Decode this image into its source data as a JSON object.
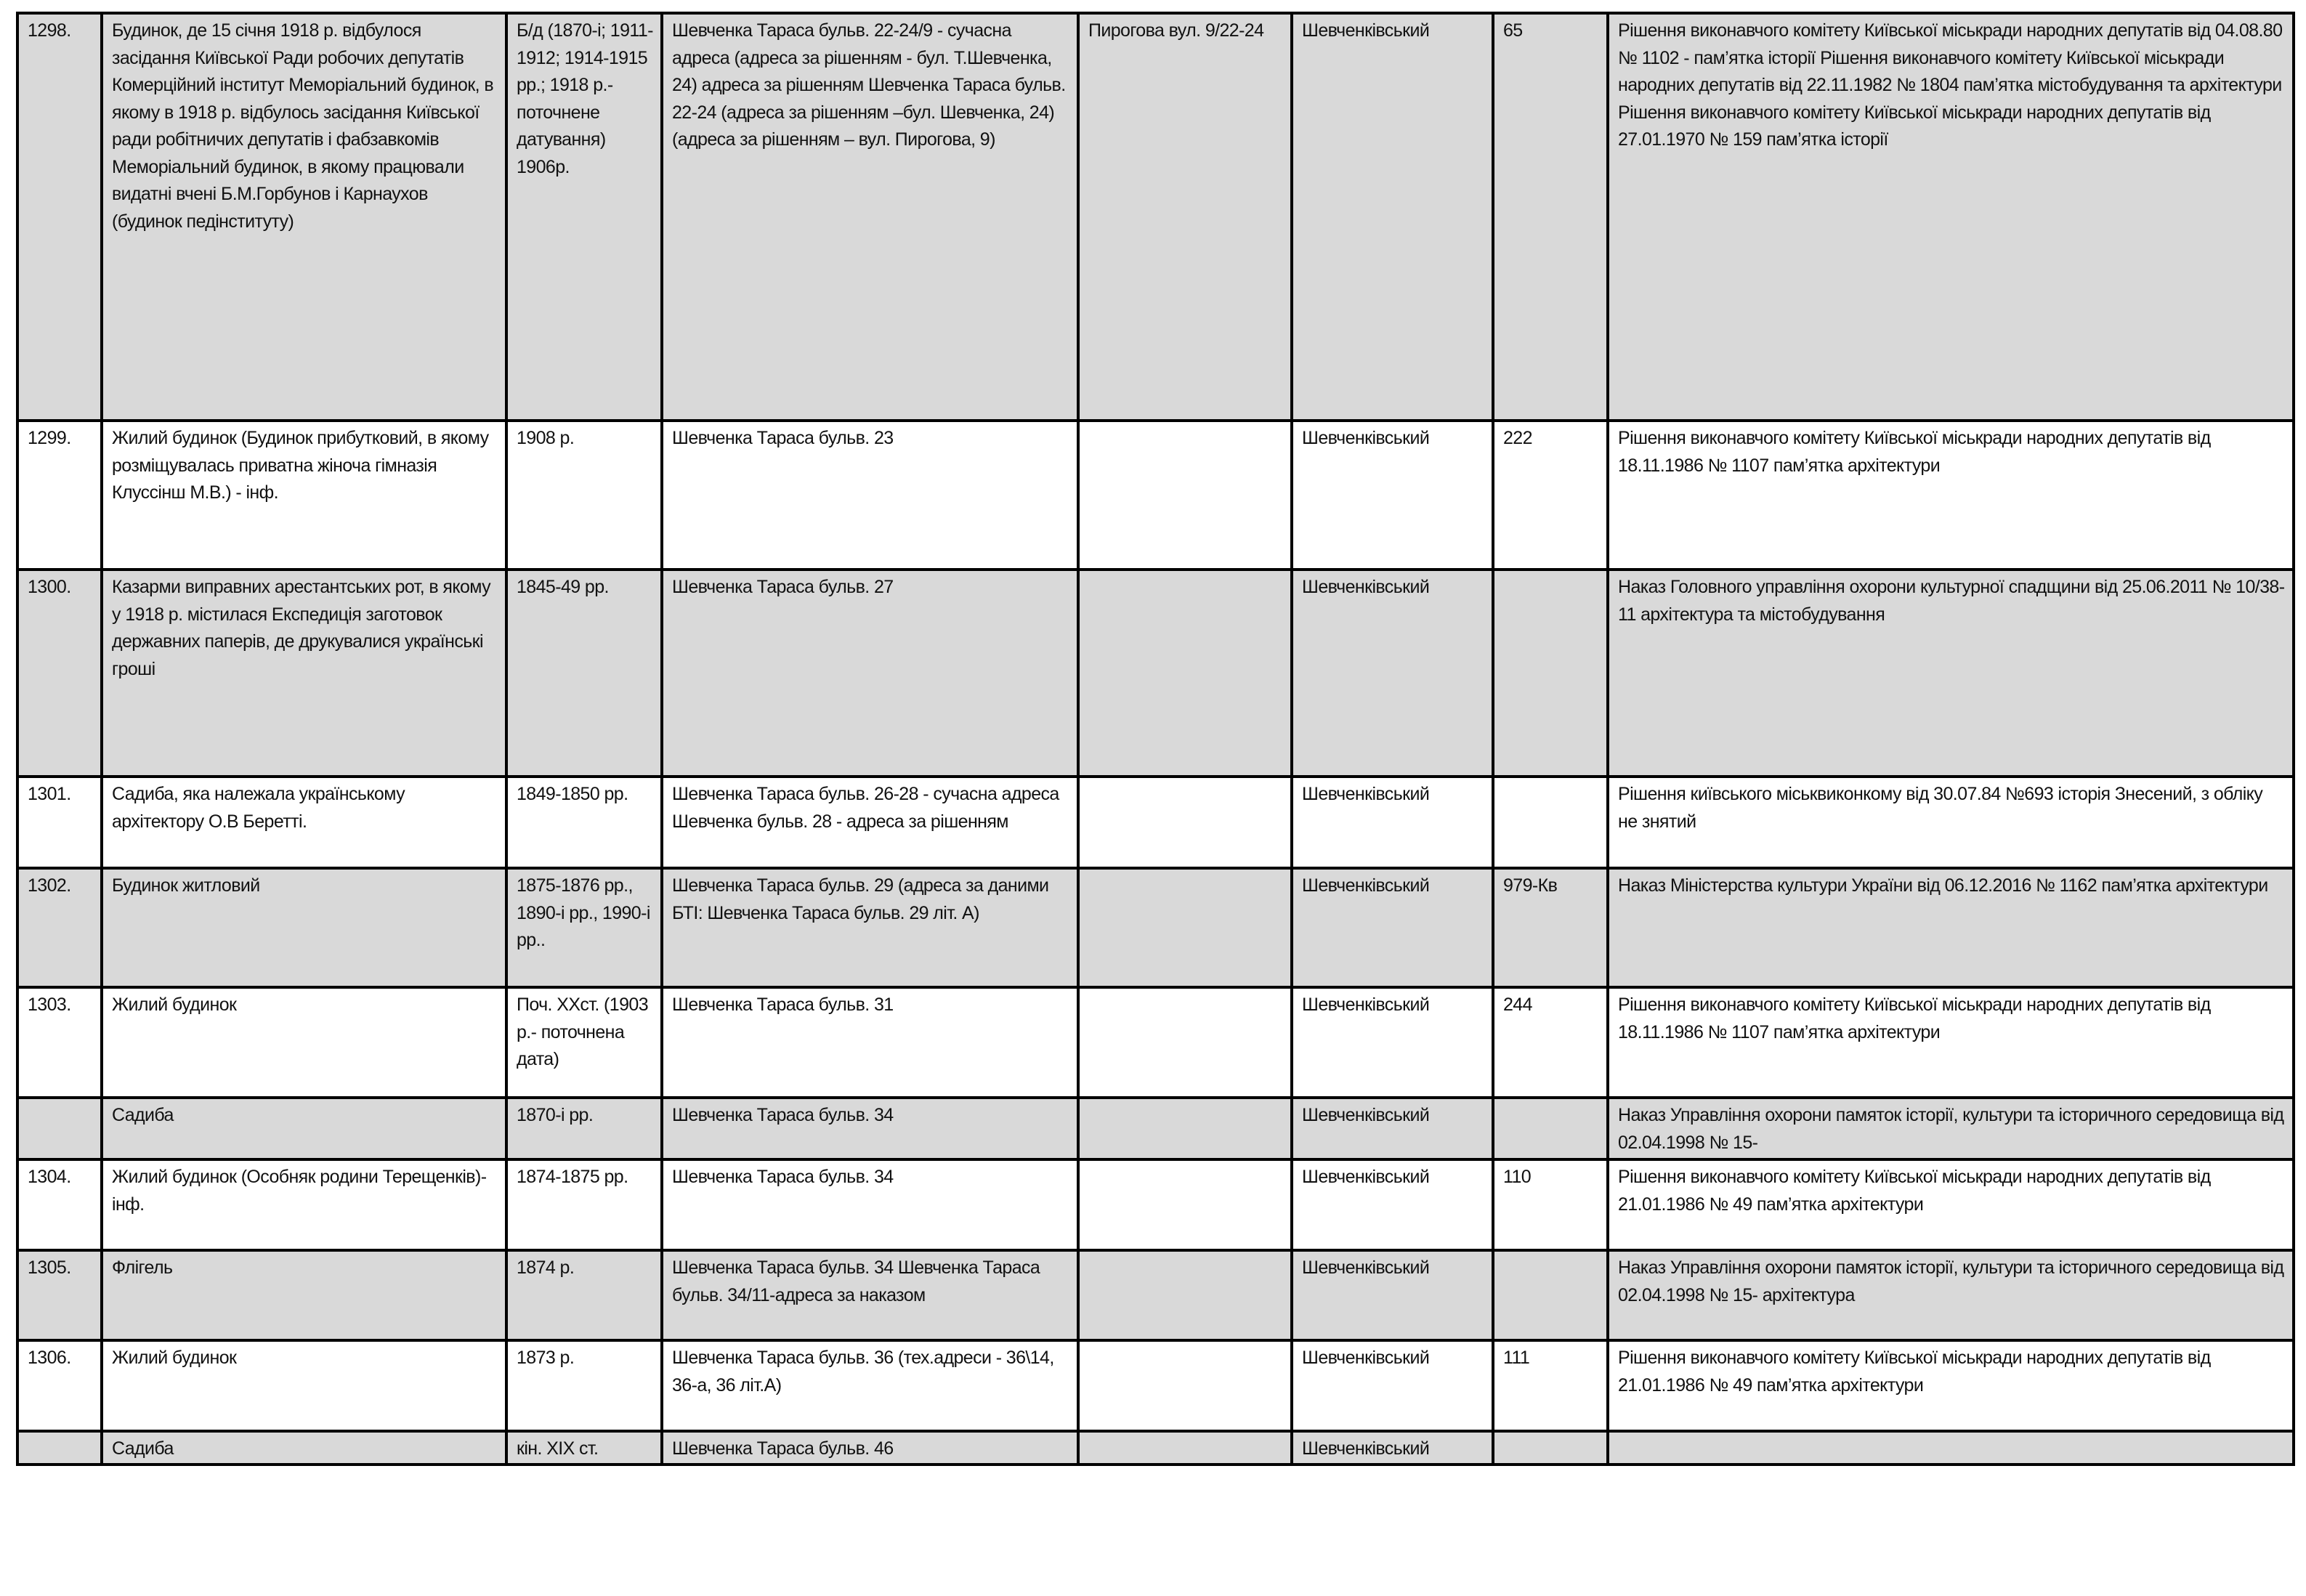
{
  "colors": {
    "shaded_row": "#d9d9d9",
    "plain_row": "#ffffff",
    "border": "#000000"
  },
  "rows": [
    {
      "shaded": true,
      "no": "1298.",
      "name": "Будинок, де 15 січня 1918 р. відбулося засідання Київської Ради робочих депутатів Комерційний інститут Меморіальний будинок, в якому в 1918 р. відбулось засідання Київської ради робітничих депутатів і фабзавкомів Меморіальний будинок, в якому працювали видатні вчені Б.М.Горбунов і Карнаухов (будинок педінституту)",
      "date": "Б/д (1870-і; 1911-1912; 1914-1915 рр.; 1918 р.- поточнене датування) 1906р.",
      "address": "Шевченка Тараса бульв. 22-24/9 - сучасна адреса (адреса за рішенням - бул. Т.Шевченка, 24) адреса за рішенням Шевченка Тараса бульв. 22-24 (адреса за рішенням –бул. Шевченка, 24) (адреса за рішенням – вул. Пирогова, 9)",
      "alt_address": "Пирогова вул. 9/22-24",
      "district": "Шевченківський",
      "reg_no": "65",
      "decision": "Рішення виконавчого комітету Київської міськради народних депутатів від 04.08.80 № 1102 - пам’ятка історії Рішення виконавчого комітету Київської міськради народних депутатів від 22.11.1982 № 1804 пам’ятка містобудування та архітектури Рішення виконавчого комітету Київської міськради народних депутатів від 27.01.1970 № 159 пам’ятка історії"
    },
    {
      "shaded": false,
      "no": "1299.",
      "name": "Жилий будинок (Будинок прибутковий, в якому розміщувалась приватна жіноча гімназія Клуссінш М.В.) - інф.",
      "date": "1908 р.",
      "address": "Шевченка Тараса бульв. 23",
      "alt_address": "",
      "district": "Шевченківський",
      "reg_no": "222",
      "decision": "Рішення виконавчого комітету Київської міськради народних депутатів від 18.11.1986 № 1107 пам’ятка архітектури"
    },
    {
      "shaded": true,
      "no": "1300.",
      "name": "Казарми виправних арестантських рот, в якому у 1918 р. містилася Експедиція заготовок державних паперів, де друкувалися  українські гроші",
      "date": "1845-49 рр.",
      "address": "Шевченка Тараса бульв. 27",
      "alt_address": "",
      "district": "Шевченківський",
      "reg_no": "",
      "decision": "Наказ Головного управління охорони культурної спадщини від 25.06.2011 № 10/38-11 архітектура та містобудування"
    },
    {
      "shaded": false,
      "no": "1301.",
      "name": "Садиба, яка належала українському архітектору О.В Беретті.",
      "date": "1849-1850 рр.",
      "address": "Шевченка Тараса бульв. 26-28 - сучасна адреса Шевченка бульв. 28 - адреса за рішенням",
      "alt_address": "",
      "district": "Шевченківський",
      "reg_no": "",
      "decision": "Рішення київського міськвиконкому від 30.07.84 №693 історія Знесений, з обліку не знятий"
    },
    {
      "shaded": true,
      "no": "1302.",
      "name": "Будинок житловий",
      "date": "1875-1876 рр., 1890-і рр., 1990-і рр..",
      "address": "Шевченка Тараса бульв. 29 (адреса за даними БТІ: Шевченка Тараса бульв. 29 літ. А)",
      "alt_address": "",
      "district": "Шевченківський",
      "reg_no": "979-Кв",
      "decision": "Наказ Міністерства культури України від 06.12.2016 № 1162 пам’ятка архітектури"
    },
    {
      "shaded": false,
      "no": "1303.",
      "name": "Жилий будинок",
      "date": "Поч. ХХст. (1903 р.- поточнена дата)",
      "address": "Шевченка Тараса бульв. 31",
      "alt_address": "",
      "district": "Шевченківський",
      "reg_no": "244",
      "decision": "Рішення виконавчого комітету Київської міськради народних депутатів від 18.11.1986 № 1107 пам’ятка архітектури"
    },
    {
      "shaded": true,
      "no": "",
      "name": "Садиба",
      "date": "1870-і рр.",
      "address": "Шевченка Тараса бульв. 34",
      "alt_address": "",
      "district": "Шевченківський",
      "reg_no": "",
      "decision": "Наказ Управління охорони памяток історії, культури та історичного середовища від 02.04.1998 № 15-"
    },
    {
      "shaded": false,
      "no": "1304.",
      "name": "Жилий будинок (Особняк родини Терещенків)- інф.",
      "date": "1874-1875 рр.",
      "address": "Шевченка Тараса бульв. 34",
      "alt_address": "",
      "district": "Шевченківський",
      "reg_no": "110",
      "decision": "Рішення виконавчого комітету Київської міськради народних депутатів від 21.01.1986 № 49 пам’ятка архітектури"
    },
    {
      "shaded": true,
      "no": "1305.",
      "name": "Флігель",
      "date": "1874 р.",
      "address": "Шевченка Тараса бульв. 34 Шевченка Тараса бульв. 34/11-адреса за наказом",
      "alt_address": "",
      "district": "Шевченківський",
      "reg_no": "",
      "decision": "Наказ Управління охорони памяток історії, культури та історичного середовища від 02.04.1998 № 15- архітектура"
    },
    {
      "shaded": false,
      "no": "1306.",
      "name": "Жилий будинок",
      "date": "1873 р.",
      "address": "Шевченка Тараса бульв. 36 (тех.адреси  - 36\\14, 36-а, 36 літ.А)",
      "alt_address": "",
      "district": "Шевченківський",
      "reg_no": "111",
      "decision": "Рішення виконавчого комітету Київської міськради народних депутатів від 21.01.1986 № 49 пам’ятка архітектури"
    },
    {
      "shaded": true,
      "no": "",
      "name": "Садиба",
      "date": "кін. ХІХ ст.",
      "address": "Шевченка Тараса бульв. 46",
      "alt_address": "",
      "district": "Шевченківський",
      "reg_no": "",
      "decision": ""
    }
  ]
}
